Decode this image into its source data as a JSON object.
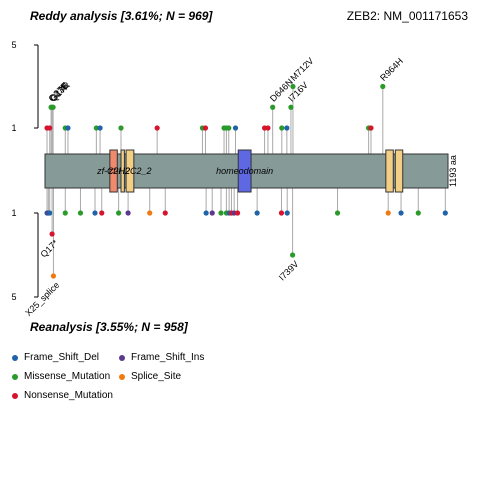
{
  "header": {
    "left_title": "Reddy analysis [3.61%; N = 969]",
    "right_title": "ZEB2: NM_001171653",
    "bottom_title": "Reanalysis [3.55%; N = 958]"
  },
  "legend": {
    "items": [
      {
        "label": "Frame_Shift_Del",
        "color": "#1f63a8"
      },
      {
        "label": "Frame_Shift_Ins",
        "color": "#5b3a8e"
      },
      {
        "label": "Missense_Mutation",
        "color": "#2a9a2a"
      },
      {
        "label": "Splice_Site",
        "color": "#f07a10"
      },
      {
        "label": "Nonsense_Mutation",
        "color": "#d7142d"
      }
    ]
  },
  "chart_data": {
    "type": "lollipop",
    "gene": "ZEB2",
    "transcript": "NM_001171653",
    "protein_length": 1193,
    "length_label": "1193 aa",
    "y_ticks": {
      "top": [
        "5",
        "1"
      ],
      "bottom": [
        "1",
        "5"
      ]
    },
    "colors": {
      "Frame_Shift_Del": "#1f63a8",
      "Frame_Shift_Ins": "#5b3a8e",
      "Missense_Mutation": "#2a9a2a",
      "Splice_Site": "#f07a10",
      "Nonsense_Mutation": "#d7142d",
      "protein": "#869a98"
    },
    "domains": [
      {
        "name": "zf-C2H2",
        "start": 192,
        "end": 214,
        "color": "#f08a6c",
        "show_label": true
      },
      {
        "name": "zf-H2C2_2",
        "start": 225,
        "end": 235,
        "color": "#f3cf86",
        "show_label": false
      },
      {
        "name": "zf-H2C2_2",
        "start": 240,
        "end": 263,
        "color": "#f3cf86",
        "show_label": true
      },
      {
        "name": "homeodomain",
        "start": 572,
        "end": 610,
        "color": "#5d68e2",
        "show_label": true
      },
      {
        "name": "zf-H2C2_2",
        "start": 1009,
        "end": 1031,
        "color": "#f3cf86",
        "show_label": false
      },
      {
        "name": "zf-H2C2_2",
        "start": 1037,
        "end": 1059,
        "color": "#f3cf86",
        "show_label": false
      }
    ],
    "domain_label_text": [
      "zf-C2H2",
      "zf-H2C2_2",
      "homeodomain"
    ],
    "top_mutations": [
      {
        "pos": 6,
        "count": 1,
        "type": "Nonsense_Mutation"
      },
      {
        "pos": 14,
        "count": 1,
        "type": "Nonsense_Mutation"
      },
      {
        "pos": 18,
        "count": 2,
        "type": "Missense_Mutation",
        "label": "Q27E"
      },
      {
        "pos": 21,
        "count": 2,
        "type": "Missense_Mutation",
        "label": "G23E"
      },
      {
        "pos": 24,
        "count": 2,
        "type": "Missense_Mutation",
        "label": "Q17R"
      },
      {
        "pos": 60,
        "count": 1,
        "type": "Missense_Mutation"
      },
      {
        "pos": 68,
        "count": 1,
        "type": "Frame_Shift_Del"
      },
      {
        "pos": 152,
        "count": 1,
        "type": "Missense_Mutation"
      },
      {
        "pos": 163,
        "count": 1,
        "type": "Frame_Shift_Del"
      },
      {
        "pos": 225,
        "count": 1,
        "type": "Missense_Mutation"
      },
      {
        "pos": 332,
        "count": 1,
        "type": "Nonsense_Mutation"
      },
      {
        "pos": 466,
        "count": 1,
        "type": "Missense_Mutation"
      },
      {
        "pos": 475,
        "count": 1,
        "type": "Nonsense_Mutation"
      },
      {
        "pos": 530,
        "count": 1,
        "type": "Missense_Mutation"
      },
      {
        "pos": 537,
        "count": 1,
        "type": "Missense_Mutation"
      },
      {
        "pos": 544,
        "count": 1,
        "type": "Missense_Mutation"
      },
      {
        "pos": 564,
        "count": 1,
        "type": "Frame_Shift_Del"
      },
      {
        "pos": 650,
        "count": 1,
        "type": "Nonsense_Mutation"
      },
      {
        "pos": 660,
        "count": 1,
        "type": "Nonsense_Mutation"
      },
      {
        "pos": 674,
        "count": 2,
        "type": "Missense_Mutation",
        "label": "D646N"
      },
      {
        "pos": 701,
        "count": 1,
        "type": "Missense_Mutation"
      },
      {
        "pos": 716,
        "count": 1,
        "type": "Frame_Shift_Del"
      },
      {
        "pos": 728,
        "count": 2,
        "type": "Missense_Mutation",
        "label": "I716V"
      },
      {
        "pos": 734,
        "count": 3,
        "type": "Missense_Mutation",
        "label": "M712V"
      },
      {
        "pos": 958,
        "count": 1,
        "type": "Missense_Mutation"
      },
      {
        "pos": 965,
        "count": 1,
        "type": "Nonsense_Mutation"
      },
      {
        "pos": 1000,
        "count": 3,
        "type": "Missense_Mutation",
        "label": "R964H"
      }
    ],
    "bottom_mutations": [
      {
        "pos": 6,
        "count": 1,
        "type": "Frame_Shift_Del"
      },
      {
        "pos": 10,
        "count": 1,
        "type": "Frame_Shift_Ins"
      },
      {
        "pos": 14,
        "count": 1,
        "type": "Frame_Shift_Del"
      },
      {
        "pos": 21,
        "count": 2,
        "type": "Nonsense_Mutation",
        "label": "Q17*"
      },
      {
        "pos": 25,
        "count": 4,
        "type": "Splice_Site",
        "label": "X25_splice"
      },
      {
        "pos": 60,
        "count": 1,
        "type": "Missense_Mutation"
      },
      {
        "pos": 105,
        "count": 1,
        "type": "Missense_Mutation"
      },
      {
        "pos": 148,
        "count": 1,
        "type": "Frame_Shift_Del"
      },
      {
        "pos": 168,
        "count": 1,
        "type": "Nonsense_Mutation"
      },
      {
        "pos": 218,
        "count": 1,
        "type": "Missense_Mutation"
      },
      {
        "pos": 246,
        "count": 1,
        "type": "Frame_Shift_Ins"
      },
      {
        "pos": 310,
        "count": 1,
        "type": "Splice_Site"
      },
      {
        "pos": 356,
        "count": 1,
        "type": "Nonsense_Mutation"
      },
      {
        "pos": 477,
        "count": 1,
        "type": "Frame_Shift_Del"
      },
      {
        "pos": 495,
        "count": 1,
        "type": "Frame_Shift_Ins"
      },
      {
        "pos": 521,
        "count": 1,
        "type": "Missense_Mutation"
      },
      {
        "pos": 537,
        "count": 1,
        "type": "Missense_Mutation"
      },
      {
        "pos": 545,
        "count": 1,
        "type": "Frame_Shift_Del"
      },
      {
        "pos": 552,
        "count": 1,
        "type": "Nonsense_Mutation"
      },
      {
        "pos": 560,
        "count": 1,
        "type": "Frame_Shift_Ins"
      },
      {
        "pos": 570,
        "count": 1,
        "type": "Nonsense_Mutation"
      },
      {
        "pos": 628,
        "count": 1,
        "type": "Frame_Shift_Del"
      },
      {
        "pos": 700,
        "count": 1,
        "type": "Nonsense_Mutation"
      },
      {
        "pos": 717,
        "count": 1,
        "type": "Frame_Shift_Del"
      },
      {
        "pos": 733,
        "count": 3,
        "type": "Missense_Mutation",
        "label": "I739V"
      },
      {
        "pos": 866,
        "count": 1,
        "type": "Missense_Mutation"
      },
      {
        "pos": 1016,
        "count": 1,
        "type": "Splice_Site"
      },
      {
        "pos": 1054,
        "count": 1,
        "type": "Frame_Shift_Del"
      },
      {
        "pos": 1105,
        "count": 1,
        "type": "Missense_Mutation"
      },
      {
        "pos": 1185,
        "count": 1,
        "type": "Frame_Shift_Del"
      }
    ]
  }
}
